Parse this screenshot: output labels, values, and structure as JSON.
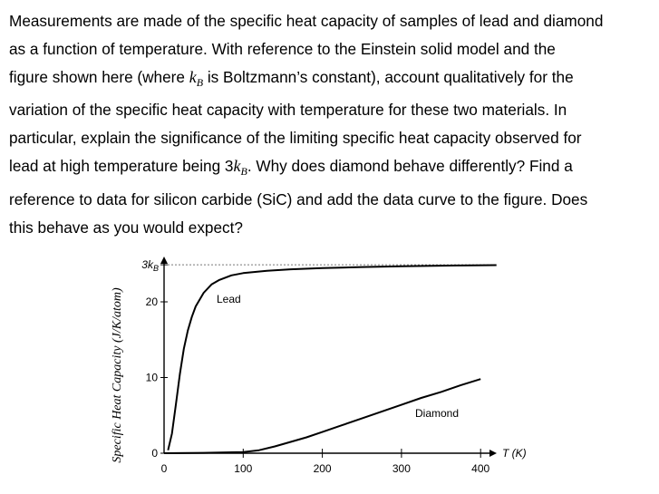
{
  "question": {
    "line1": "Measurements are made of the specific heat capacity of samples of lead and diamond",
    "line2a": "as a function of temperature.  With reference to the Einstein solid model and the",
    "line3a": "figure shown here (where ",
    "line3_k": "k",
    "line3_sub": "B",
    "line3b": " is Boltzmann’s constant), account qualitatively for the",
    "line4": "variation of the specific heat capacity with temperature for these two materials.  In",
    "line5": "particular, explain the significance of the limiting specific heat capacity observed for",
    "line6a": "lead at high temperature being 3",
    "line6_k": "k",
    "line6_sub": "B",
    "line6b": ".  Why does diamond behave differently?  Find a",
    "line7": "reference to data for silicon carbide (SiC) and add the data curve to the figure.  Does",
    "line8": "this behave as you would expect?"
  },
  "chart_data": {
    "type": "line",
    "ylabel": "Specific Heat Capacity (J/K/atom)",
    "xlabel": "T (K)",
    "x_ticks": [
      "0",
      "100",
      "200",
      "300",
      "400"
    ],
    "y_ticks": [
      "0",
      "10",
      "20"
    ],
    "y_top_label": "3kB",
    "xlim": [
      0,
      420
    ],
    "ylim": [
      0,
      25
    ],
    "limit_line": 24.9,
    "series": [
      {
        "name": "Lead",
        "x": [
          5,
          10,
          15,
          20,
          25,
          30,
          35,
          40,
          50,
          60,
          70,
          85,
          100,
          130,
          160,
          200,
          250,
          300,
          370,
          420
        ],
        "y": [
          0.4,
          2.6,
          6.5,
          10.5,
          13.8,
          16.2,
          18.0,
          19.4,
          21.2,
          22.3,
          22.9,
          23.5,
          23.8,
          24.1,
          24.3,
          24.45,
          24.6,
          24.7,
          24.8,
          24.85
        ]
      },
      {
        "name": "Diamond",
        "x": [
          0,
          50,
          100,
          120,
          140,
          160,
          180,
          200,
          225,
          250,
          275,
          300,
          325,
          350,
          375,
          400
        ],
        "y": [
          0,
          0.05,
          0.15,
          0.4,
          0.9,
          1.5,
          2.1,
          2.8,
          3.7,
          4.6,
          5.5,
          6.4,
          7.3,
          8.1,
          9.0,
          9.8
        ]
      }
    ]
  }
}
